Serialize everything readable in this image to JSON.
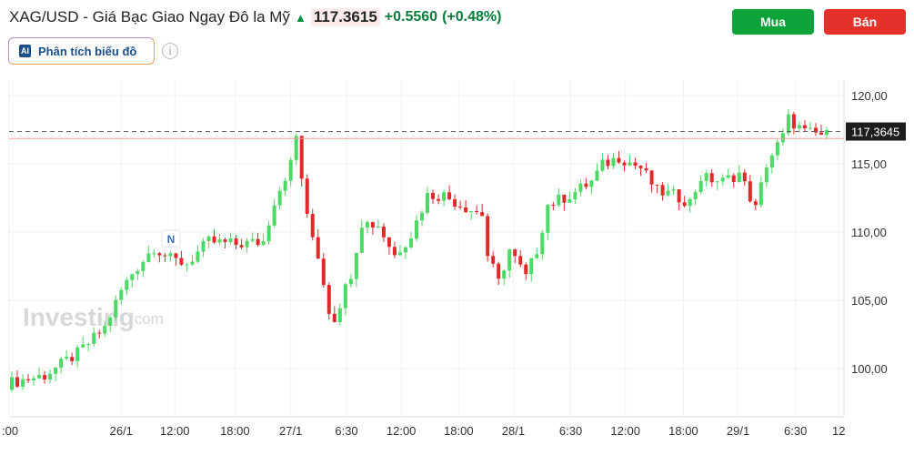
{
  "header": {
    "name": "XAG/USD - Giá Bạc Giao Ngay Đô la Mỹ",
    "price": "117.3615",
    "change": "+0.5560",
    "change_pct": "(+0.48%)",
    "arrow_icon": "arrow-up-icon"
  },
  "ai_button": {
    "badge": "AI",
    "label": "Phân tích biểu đồ"
  },
  "info_icon": "i",
  "buttons": {
    "buy": "Mua",
    "sell": "Bán"
  },
  "colors": {
    "up": "#4cd964",
    "down": "#e02a2a",
    "buy": "#0ea33a",
    "sell": "#e5312a"
  },
  "watermark": {
    "brand": "Investing",
    ".com": ".com"
  },
  "marker": "N",
  "chart_data": {
    "type": "candlestick",
    "title": "XAG/USD",
    "ylim": [
      96.5,
      124
    ],
    "y_ticks": [
      {
        "v": 120,
        "label": "120,00"
      },
      {
        "v": 115,
        "label": "115,00"
      },
      {
        "v": 110,
        "label": "110,00"
      },
      {
        "v": 105,
        "label": "105,00"
      },
      {
        "v": 100,
        "label": "100,00"
      }
    ],
    "x_ticks": [
      {
        "i": 0,
        "label": ":00"
      },
      {
        "i": 20.5,
        "label": "26/1"
      },
      {
        "i": 30.3,
        "label": "12:00"
      },
      {
        "i": 41.3,
        "label": "18:00"
      },
      {
        "i": 51.5,
        "label": "27/1"
      },
      {
        "i": 61.7,
        "label": "6:30"
      },
      {
        "i": 71.7,
        "label": "12:00"
      },
      {
        "i": 82.2,
        "label": "18:00"
      },
      {
        "i": 92.2,
        "label": "28/1"
      },
      {
        "i": 102.7,
        "label": "6:30"
      },
      {
        "i": 112.7,
        "label": "12:00"
      },
      {
        "i": 123.3,
        "label": "18:00"
      },
      {
        "i": 133.3,
        "label": "29/1"
      },
      {
        "i": 143.8,
        "label": "6:30"
      },
      {
        "i": 151.7,
        "label": "12"
      }
    ],
    "candle_count": 150,
    "close_waypoints": [
      [
        0,
        98.9
      ],
      [
        7,
        99.5
      ],
      [
        13,
        101.1
      ],
      [
        18,
        103
      ],
      [
        21,
        105.7
      ],
      [
        23,
        107
      ],
      [
        27,
        108.9
      ],
      [
        30,
        108
      ],
      [
        33,
        107.7
      ],
      [
        37,
        109.3
      ],
      [
        42,
        109.1
      ],
      [
        47,
        109.3
      ],
      [
        49,
        112.3
      ],
      [
        52,
        115
      ],
      [
        53,
        117
      ],
      [
        55,
        111
      ],
      [
        57,
        108.3
      ],
      [
        59,
        104.3
      ],
      [
        60,
        103.7
      ],
      [
        63,
        107
      ],
      [
        65,
        110.7
      ],
      [
        68,
        110.5
      ],
      [
        71,
        108.3
      ],
      [
        74,
        109.8
      ],
      [
        77,
        112.7
      ],
      [
        80,
        112.7
      ],
      [
        83,
        112
      ],
      [
        87,
        111.3
      ],
      [
        88,
        108.3
      ],
      [
        90,
        106.3
      ],
      [
        92,
        108.7
      ],
      [
        95,
        106.7
      ],
      [
        97,
        108.7
      ],
      [
        99,
        112
      ],
      [
        103,
        112.7
      ],
      [
        107,
        113.7
      ],
      [
        109,
        114.9
      ],
      [
        112,
        115.5
      ],
      [
        116,
        114.7
      ],
      [
        119,
        113
      ],
      [
        122,
        112.7
      ],
      [
        125,
        112.2
      ],
      [
        127,
        114
      ],
      [
        131,
        113.7
      ],
      [
        134,
        114.3
      ],
      [
        137,
        111.7
      ],
      [
        139,
        115
      ],
      [
        142,
        117
      ],
      [
        143,
        118.3
      ],
      [
        146,
        117.3
      ],
      [
        150,
        117.1
      ]
    ],
    "last_price": {
      "value": 117.3645,
      "label": "117,3645"
    },
    "prev_close_line": 116.85,
    "grid": true
  }
}
